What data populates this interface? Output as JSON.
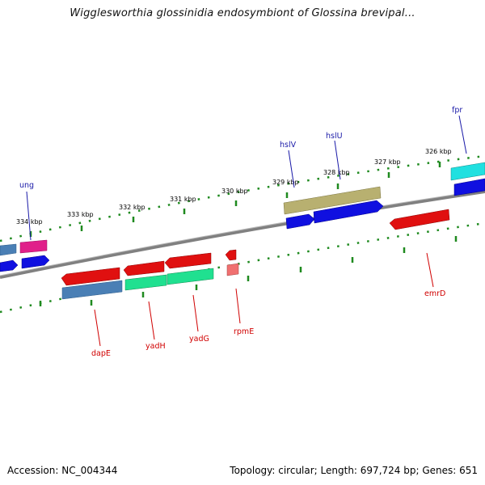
{
  "title": "Wigglesworthia glossinidia endosymbiont of Glossina brevipal...",
  "footer": {
    "accession": "Accession: NC_004344",
    "summary": "Topology: circular; Length: 697,724 bp; Genes: 651"
  },
  "colors": {
    "backbone": "#808080",
    "scale_dots": "#1f8a1f",
    "label_top": "#1a1aa8",
    "label_bottom": "#d00000"
  },
  "scale_labels": [
    "334 kbp",
    "333 kbp",
    "332 kbp",
    "331 kbp",
    "330 kbp",
    "329 kbp",
    "328 kbp",
    "327 kbp",
    "326 kbp"
  ],
  "genes_top_labeled": [
    "ung",
    "hslV",
    "hslU",
    "fpr"
  ],
  "genes_bottom_labeled": [
    "dapE",
    "yadH",
    "yadG",
    "rpmE",
    "emrD"
  ],
  "feature_colors": [
    "#4a7fb5",
    "#e0208a",
    "#1010e0",
    "#e01010",
    "#20e090",
    "#f06060",
    "#b8b070",
    "#20e0e0"
  ]
}
